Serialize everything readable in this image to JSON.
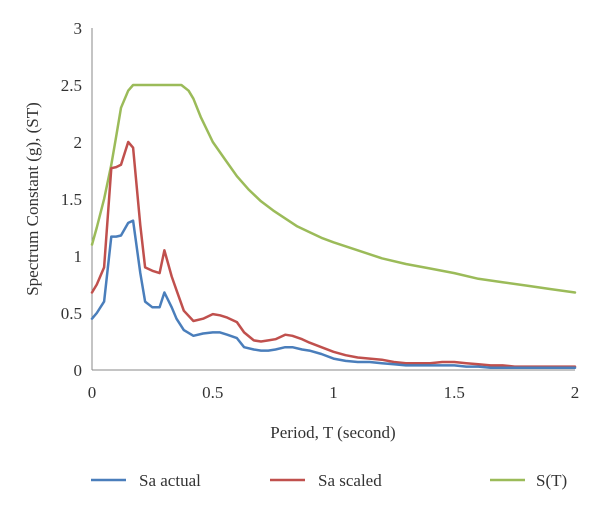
{
  "chart_data": {
    "type": "line",
    "title": "",
    "xlabel": "Period, T (second)",
    "ylabel": "Spectrum Constant (g), (ST)",
    "xlim": [
      0,
      2
    ],
    "ylim": [
      0,
      3
    ],
    "xticks": [
      "0",
      "0.5",
      "1",
      "1.5",
      "2"
    ],
    "yticks": [
      "0",
      "0.5",
      "1",
      "1.5",
      "2",
      "2.5",
      "3"
    ],
    "grid": false,
    "legend_position": "bottom",
    "series": [
      {
        "name": "Sa actual",
        "color": "#4a7ebb",
        "x": [
          0,
          0.02,
          0.05,
          0.08,
          0.1,
          0.12,
          0.15,
          0.17,
          0.2,
          0.22,
          0.25,
          0.28,
          0.3,
          0.33,
          0.35,
          0.38,
          0.42,
          0.46,
          0.5,
          0.53,
          0.56,
          0.6,
          0.63,
          0.67,
          0.7,
          0.73,
          0.76,
          0.8,
          0.83,
          0.87,
          0.9,
          0.95,
          1.0,
          1.05,
          1.1,
          1.15,
          1.2,
          1.25,
          1.3,
          1.35,
          1.4,
          1.45,
          1.5,
          1.55,
          1.6,
          1.65,
          1.7,
          1.75,
          1.8,
          1.85,
          1.9,
          1.95,
          2.0
        ],
        "y": [
          0.45,
          0.5,
          0.6,
          1.17,
          1.17,
          1.18,
          1.29,
          1.31,
          0.85,
          0.6,
          0.55,
          0.55,
          0.68,
          0.55,
          0.45,
          0.35,
          0.3,
          0.32,
          0.33,
          0.33,
          0.31,
          0.28,
          0.2,
          0.18,
          0.17,
          0.17,
          0.18,
          0.2,
          0.2,
          0.18,
          0.17,
          0.14,
          0.1,
          0.08,
          0.07,
          0.07,
          0.06,
          0.05,
          0.04,
          0.04,
          0.04,
          0.04,
          0.04,
          0.03,
          0.03,
          0.02,
          0.02,
          0.02,
          0.02,
          0.02,
          0.02,
          0.02,
          0.02
        ]
      },
      {
        "name": "Sa scaled",
        "color": "#c0504d",
        "x": [
          0,
          0.02,
          0.05,
          0.08,
          0.1,
          0.12,
          0.15,
          0.17,
          0.2,
          0.22,
          0.25,
          0.28,
          0.3,
          0.33,
          0.35,
          0.38,
          0.42,
          0.46,
          0.5,
          0.53,
          0.56,
          0.6,
          0.63,
          0.67,
          0.7,
          0.73,
          0.76,
          0.8,
          0.83,
          0.87,
          0.9,
          0.95,
          1.0,
          1.05,
          1.1,
          1.15,
          1.2,
          1.25,
          1.3,
          1.35,
          1.4,
          1.45,
          1.5,
          1.55,
          1.6,
          1.65,
          1.7,
          1.75,
          1.8,
          1.85,
          1.9,
          1.95,
          2.0
        ],
        "y": [
          0.68,
          0.75,
          0.9,
          1.77,
          1.78,
          1.8,
          2.0,
          1.95,
          1.27,
          0.9,
          0.87,
          0.85,
          1.05,
          0.82,
          0.7,
          0.52,
          0.43,
          0.45,
          0.49,
          0.48,
          0.46,
          0.42,
          0.33,
          0.26,
          0.25,
          0.26,
          0.27,
          0.31,
          0.3,
          0.27,
          0.24,
          0.2,
          0.16,
          0.13,
          0.11,
          0.1,
          0.09,
          0.07,
          0.06,
          0.06,
          0.06,
          0.07,
          0.07,
          0.06,
          0.05,
          0.04,
          0.04,
          0.03,
          0.03,
          0.03,
          0.03,
          0.03,
          0.03
        ]
      },
      {
        "name": "S(T)",
        "color": "#9bbb59",
        "x": [
          0,
          0.02,
          0.05,
          0.08,
          0.1,
          0.12,
          0.15,
          0.17,
          0.2,
          0.25,
          0.3,
          0.35,
          0.37,
          0.4,
          0.42,
          0.45,
          0.5,
          0.55,
          0.6,
          0.65,
          0.7,
          0.75,
          0.8,
          0.85,
          0.9,
          0.95,
          1.0,
          1.1,
          1.2,
          1.3,
          1.4,
          1.5,
          1.6,
          1.7,
          1.8,
          1.9,
          2.0
        ],
        "y": [
          1.1,
          1.25,
          1.5,
          1.8,
          2.05,
          2.3,
          2.45,
          2.5,
          2.5,
          2.5,
          2.5,
          2.5,
          2.5,
          2.45,
          2.38,
          2.22,
          2.0,
          1.85,
          1.7,
          1.58,
          1.48,
          1.4,
          1.33,
          1.26,
          1.21,
          1.16,
          1.12,
          1.05,
          0.98,
          0.93,
          0.89,
          0.85,
          0.8,
          0.77,
          0.74,
          0.71,
          0.68
        ]
      }
    ]
  }
}
